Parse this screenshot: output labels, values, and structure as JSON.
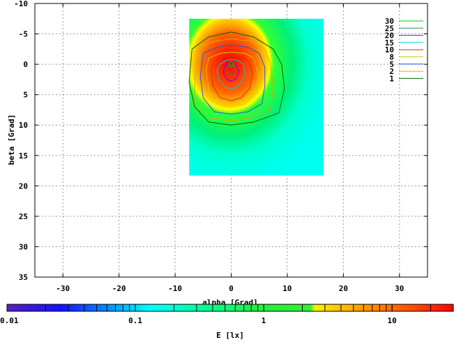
{
  "chart_data": {
    "type": "heatmap",
    "title": "",
    "xlabel": "alpha [Grad]",
    "ylabel": "beta [Grad]",
    "xlim": [
      -35,
      35
    ],
    "ylim": [
      35,
      -10
    ],
    "y_inverted": true,
    "x_ticks": [
      -30,
      -20,
      -10,
      0,
      10,
      20,
      30
    ],
    "y_ticks": [
      -10,
      -5,
      0,
      5,
      10,
      15,
      20,
      25,
      30,
      35
    ],
    "x_tick_labels": [
      "-30",
      "-20",
      "-10",
      "0",
      "10",
      "20",
      "30"
    ],
    "y_tick_labels": [
      "-10",
      "-5",
      "0",
      "5",
      "10",
      "15",
      "20",
      "25",
      "30",
      "35"
    ],
    "grid": true,
    "map_extent": {
      "alpha": [
        -7.5,
        16.5
      ],
      "beta": [
        -7.5,
        18.3
      ]
    },
    "peak": {
      "alpha": 0,
      "beta": 0,
      "value_lx": 30
    },
    "legend_position": "top-right",
    "contour_levels": [
      {
        "level": "30",
        "color": "#00cc00"
      },
      {
        "level": "25",
        "color": "#2e8b57"
      },
      {
        "level": "20",
        "color": "#9400d3"
      },
      {
        "level": "15",
        "color": "#00ced1"
      },
      {
        "level": "10",
        "color": "#cc3300"
      },
      {
        "level": "8",
        "color": "#cccc00"
      },
      {
        "level": "5",
        "color": "#2255ee"
      },
      {
        "level": "2",
        "color": "#ddaa00"
      },
      {
        "level": "1",
        "color": "#006400"
      }
    ],
    "contours": [
      {
        "level": 1,
        "alpha": [
          -7.0,
          -4.0,
          0.0,
          4.0,
          7.5,
          9.0,
          9.5,
          8.5,
          4.0,
          0.0,
          -4.0,
          -6.5,
          -7.5,
          -7.0
        ],
        "beta": [
          -2.5,
          -4.5,
          -5.3,
          -4.5,
          -2.5,
          0.0,
          4.0,
          8.0,
          9.5,
          10.0,
          9.5,
          7.0,
          3.0,
          -2.5
        ]
      },
      {
        "level": 2,
        "alpha": [
          -6.0,
          -3.0,
          0.0,
          3.5,
          6.0,
          7.0,
          7.5,
          7.0,
          3.5,
          0.0,
          -4.0,
          -6.5,
          -6.5,
          -6.0
        ],
        "beta": [
          -2.5,
          -3.8,
          -4.2,
          -3.8,
          -2.5,
          0.0,
          4.0,
          7.5,
          8.8,
          9.3,
          8.8,
          6.5,
          2.5,
          -2.5
        ]
      },
      {
        "level": 5,
        "alpha": [
          -5.0,
          -2.5,
          0.0,
          3.0,
          5.0,
          6.0,
          6.0,
          5.5,
          3.0,
          0.0,
          -3.0,
          -5.0,
          -5.5,
          -5.0
        ],
        "beta": [
          -1.8,
          -2.8,
          -3.2,
          -2.8,
          -1.8,
          0.5,
          3.5,
          6.5,
          7.8,
          8.2,
          7.8,
          5.5,
          2.0,
          -1.8
        ]
      },
      {
        "level": 8,
        "alpha": [
          -4.0,
          -2.0,
          0.0,
          2.5,
          4.0,
          4.8,
          4.5,
          2.5,
          0.0,
          -2.5,
          -4.0,
          -4.5,
          -4.0
        ],
        "beta": [
          -1.0,
          -1.8,
          -2.0,
          -1.8,
          -1.0,
          1.5,
          4.5,
          6.5,
          7.0,
          6.5,
          4.0,
          1.0,
          -1.0
        ]
      },
      {
        "level": 10,
        "alpha": [
          -3.2,
          -1.5,
          0.0,
          2.0,
          3.2,
          3.8,
          3.3,
          1.8,
          0.0,
          -2.0,
          -3.3,
          -3.6,
          -3.2
        ],
        "beta": [
          -0.5,
          -1.2,
          -1.4,
          -1.2,
          -0.5,
          1.5,
          4.0,
          5.5,
          6.0,
          5.5,
          3.5,
          1.0,
          -0.5
        ]
      },
      {
        "level": 15,
        "alpha": [
          -2.0,
          -1.0,
          0.0,
          1.2,
          2.2,
          2.5,
          1.8,
          0.5,
          -1.0,
          -2.2,
          -2.5,
          -2.0
        ],
        "beta": [
          0.0,
          -0.6,
          -0.8,
          -0.6,
          0.0,
          1.5,
          3.0,
          4.0,
          3.8,
          2.5,
          1.0,
          0.0
        ]
      },
      {
        "level": 20,
        "alpha": [
          -1.2,
          -0.5,
          0.3,
          1.0,
          1.4,
          1.0,
          0.0,
          -0.9,
          -1.4,
          -1.2
        ],
        "beta": [
          0.3,
          -0.2,
          -0.2,
          0.2,
          1.2,
          2.3,
          2.8,
          2.4,
          1.3,
          0.3
        ]
      },
      {
        "level": 25,
        "alpha": [
          -0.6,
          0.0,
          0.6,
          0.8,
          0.4,
          -0.3,
          -0.8,
          -0.6
        ],
        "beta": [
          0.3,
          0.0,
          0.3,
          1.0,
          1.7,
          1.8,
          1.1,
          0.3
        ]
      },
      {
        "level": 30,
        "alpha": [
          -0.3,
          0.0,
          0.3,
          0.45,
          0.3,
          0.0,
          -0.3,
          -0.45,
          -0.3
        ],
        "beta": [
          -0.3,
          -0.45,
          -0.3,
          0.0,
          0.3,
          0.45,
          0.3,
          0.0,
          -0.3
        ]
      }
    ],
    "colorbar": {
      "label": "E [lx]",
      "scale": "log",
      "range": [
        0.01,
        30
      ],
      "tick_labels": [
        "0.01",
        "0.1",
        "1",
        "10"
      ],
      "tick_values": [
        0.01,
        0.1,
        1,
        10
      ],
      "colors": [
        "#5522bb",
        "#0000ff",
        "#00aaff",
        "#00ffff",
        "#00ff66",
        "#33ee33",
        "#ffee00",
        "#ff9900",
        "#ff3300",
        "#ff0000"
      ]
    }
  }
}
